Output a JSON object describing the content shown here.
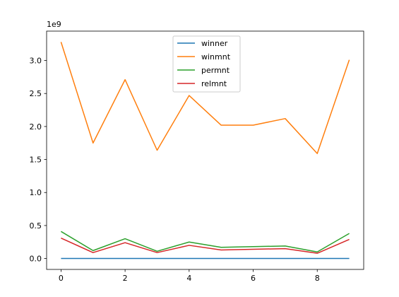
{
  "chart_data": {
    "type": "line",
    "title": "",
    "xlabel": "",
    "ylabel": "",
    "y_exponent_label": "1e9",
    "x": [
      0,
      1,
      2,
      3,
      4,
      5,
      6,
      7,
      8,
      9
    ],
    "xlim": [
      -0.45,
      9.45
    ],
    "ylim": [
      -0.165,
      3.445
    ],
    "x_ticks": [
      0,
      2,
      4,
      6,
      8
    ],
    "x_tick_labels": [
      "0",
      "2",
      "4",
      "6",
      "8"
    ],
    "y_ticks": [
      0.0,
      0.5,
      1.0,
      1.5,
      2.0,
      2.5,
      3.0
    ],
    "y_tick_labels": [
      "0.0",
      "0.5",
      "1.0",
      "1.5",
      "2.0",
      "2.5",
      "3.0"
    ],
    "grid": false,
    "legend_position": "upper center",
    "series": [
      {
        "name": "winner",
        "color": "#1f77b4",
        "values": [
          0.001,
          0.001,
          0.001,
          0.001,
          0.001,
          0.001,
          0.001,
          0.001,
          0.001,
          0.001
        ]
      },
      {
        "name": "winmnt",
        "color": "#ff7f0e",
        "values": [
          3.28,
          1.75,
          2.71,
          1.64,
          2.47,
          2.02,
          2.02,
          2.12,
          1.59,
          3.01
        ]
      },
      {
        "name": "permnt",
        "color": "#2ca02c",
        "values": [
          0.41,
          0.12,
          0.3,
          0.11,
          0.25,
          0.17,
          0.18,
          0.19,
          0.1,
          0.38
        ]
      },
      {
        "name": "relmnt",
        "color": "#d62728",
        "values": [
          0.31,
          0.09,
          0.24,
          0.09,
          0.2,
          0.13,
          0.14,
          0.15,
          0.08,
          0.29
        ]
      }
    ]
  }
}
